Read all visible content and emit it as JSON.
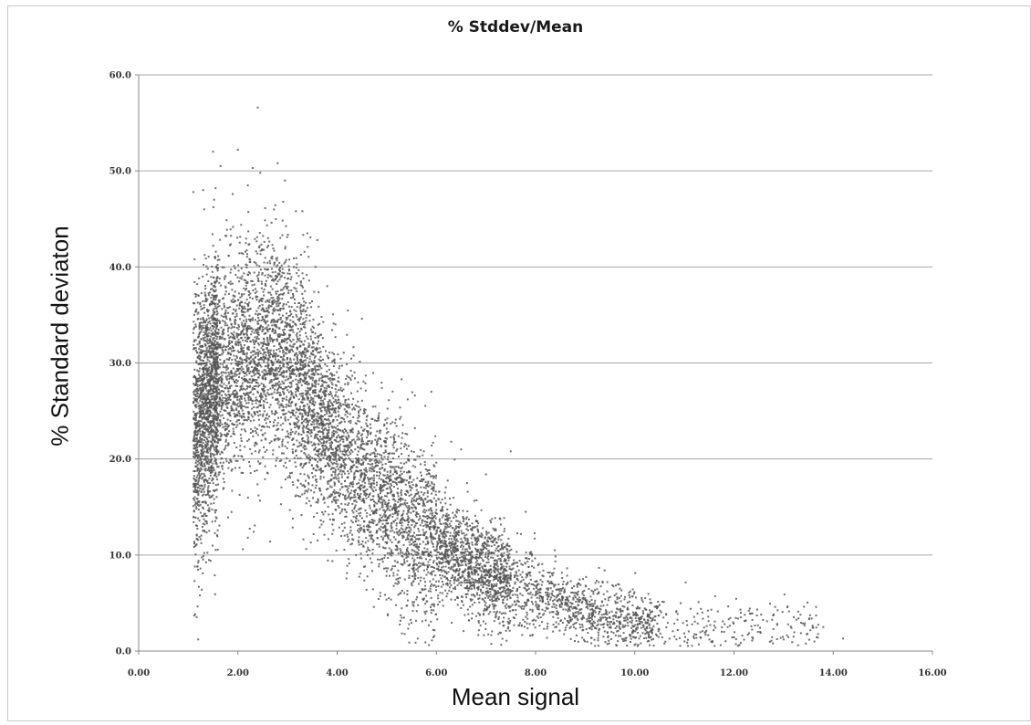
{
  "chart_data": {
    "type": "scatter",
    "title": "% Stddev/Mean",
    "xlabel": "Mean signal",
    "ylabel": "% Standard deviaton",
    "xlim": [
      0,
      16
    ],
    "ylim": [
      0,
      60
    ],
    "x_ticks": [
      "0.00",
      "2.00",
      "4.00",
      "6.00",
      "8.00",
      "10.00",
      "12.00",
      "14.00",
      "16.00"
    ],
    "y_ticks": [
      "0.0",
      "10.0",
      "20.0",
      "30.0",
      "40.0",
      "50.0",
      "60.0"
    ],
    "grid": "horizontal",
    "legend": "none",
    "marker_color": "#555555",
    "series": [
      {
        "points": [
          [
            1.1,
            47.8
          ],
          [
            1.3,
            48.0
          ],
          [
            1.5,
            52.0
          ],
          [
            1.65,
            50.5
          ],
          [
            1.55,
            48.2
          ],
          [
            2.0,
            52.2
          ],
          [
            2.3,
            50.3
          ],
          [
            2.4,
            56.6
          ],
          [
            2.45,
            49.8
          ],
          [
            2.2,
            48.5
          ],
          [
            2.8,
            50.8
          ],
          [
            2.95,
            49.0
          ],
          [
            3.3,
            45.8
          ],
          [
            3.4,
            43.5
          ],
          [
            3.6,
            42.8
          ],
          [
            3.8,
            38.0
          ],
          [
            4.5,
            34.6
          ],
          [
            5.3,
            28.3
          ],
          [
            5.9,
            27.0
          ],
          [
            6.3,
            21.8
          ],
          [
            6.5,
            21.0
          ],
          [
            7.0,
            18.4
          ],
          [
            7.5,
            20.8
          ],
          [
            7.8,
            14.5
          ],
          [
            5.45,
            2.8
          ],
          [
            1.2,
            9.2
          ],
          [
            1.45,
            9.4
          ],
          [
            2.1,
            10.6
          ],
          [
            2.2,
            11.8
          ],
          [
            2.65,
            11.4
          ],
          [
            13.2,
            1.5
          ],
          [
            13.3,
            3.4
          ],
          [
            13.8,
            2.5
          ],
          [
            14.2,
            1.3
          ],
          [
            12.8,
            3.8
          ],
          [
            12.3,
            4.2
          ],
          [
            11.8,
            2.0
          ],
          [
            10.5,
            4.8
          ],
          [
            9.7,
            6.5
          ]
        ]
      }
    ]
  }
}
